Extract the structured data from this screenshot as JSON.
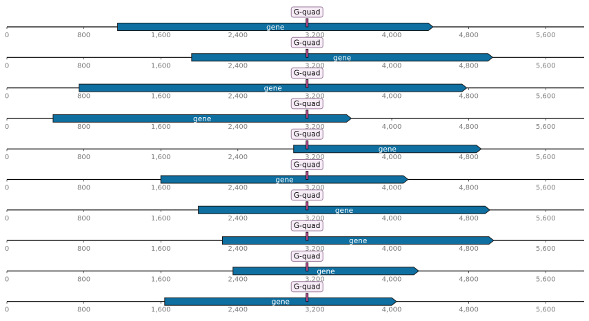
{
  "chart_data": {
    "type": "gene-track-map",
    "axis": {
      "min": 0,
      "max": 6000,
      "ticks": [
        0,
        800,
        1600,
        2400,
        3200,
        4000,
        4800,
        5600
      ],
      "tick_labels": [
        "0",
        "800",
        "1,600",
        "2,400",
        "3,200",
        "4,000",
        "4,800",
        "5,600"
      ]
    },
    "colors": {
      "gene_fill": "#0e6fa0",
      "gene_stroke": "#1a1a1a",
      "gquad_marker": "#c0529a",
      "label_box_fill": "#f6ecf6",
      "label_box_stroke": "#9a7a9a",
      "baseline": "#000000",
      "tick_text": "#808080"
    },
    "tracks": [
      {
        "gene": {
          "label": "gene",
          "start": 1150,
          "end": 4430,
          "strand": "+"
        },
        "feature": {
          "label": "G-quad",
          "position": 3120
        }
      },
      {
        "gene": {
          "label": "gene",
          "start": 1920,
          "end": 5050,
          "strand": "+"
        },
        "feature": {
          "label": "G-quad",
          "position": 3120
        }
      },
      {
        "gene": {
          "label": "gene",
          "start": 750,
          "end": 4780,
          "strand": "+"
        },
        "feature": {
          "label": "G-quad",
          "position": 3120
        }
      },
      {
        "gene": {
          "label": "gene",
          "start": 480,
          "end": 3580,
          "strand": "+"
        },
        "feature": {
          "label": "G-quad",
          "position": 3120
        }
      },
      {
        "gene": {
          "label": "gene",
          "start": 2980,
          "end": 4930,
          "strand": "+"
        },
        "feature": {
          "label": "G-quad",
          "position": 3120
        }
      },
      {
        "gene": {
          "label": "gene",
          "start": 1600,
          "end": 4170,
          "strand": "+"
        },
        "feature": {
          "label": "G-quad",
          "position": 3120
        }
      },
      {
        "gene": {
          "label": "gene",
          "start": 1990,
          "end": 5020,
          "strand": "+"
        },
        "feature": {
          "label": "G-quad",
          "position": 3120
        }
      },
      {
        "gene": {
          "label": "gene",
          "start": 2240,
          "end": 5060,
          "strand": "+"
        },
        "feature": {
          "label": "G-quad",
          "position": 3120
        }
      },
      {
        "gene": {
          "label": "gene",
          "start": 2350,
          "end": 4280,
          "strand": "+"
        },
        "feature": {
          "label": "G-quad",
          "position": 3120
        }
      },
      {
        "gene": {
          "label": "gene",
          "start": 1640,
          "end": 4050,
          "strand": "+"
        },
        "feature": {
          "label": "G-quad",
          "position": 3120
        }
      }
    ]
  }
}
